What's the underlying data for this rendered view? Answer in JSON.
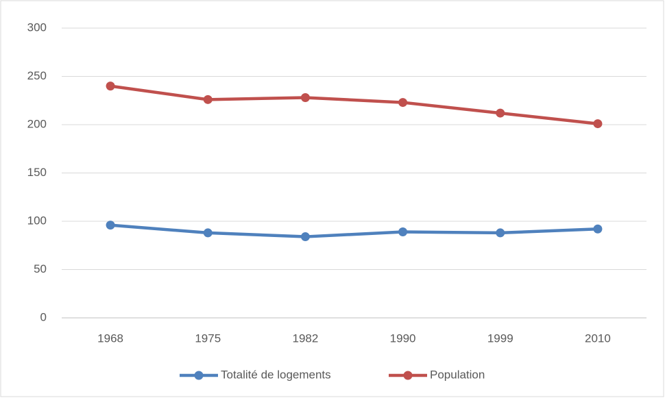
{
  "chart_data": {
    "type": "line",
    "categories": [
      "1968",
      "1975",
      "1982",
      "1990",
      "1999",
      "2010"
    ],
    "series": [
      {
        "name": "Totalité de logements",
        "color": "#4f81bd",
        "values": [
          96,
          88,
          84,
          89,
          88,
          92
        ]
      },
      {
        "name": "Population",
        "color": "#c0504d",
        "values": [
          240,
          226,
          228,
          223,
          212,
          201
        ]
      }
    ],
    "ylim": [
      0,
      300
    ],
    "yticks": [
      0,
      50,
      100,
      150,
      200,
      250,
      300
    ],
    "grid": true,
    "legend": "bottom"
  }
}
